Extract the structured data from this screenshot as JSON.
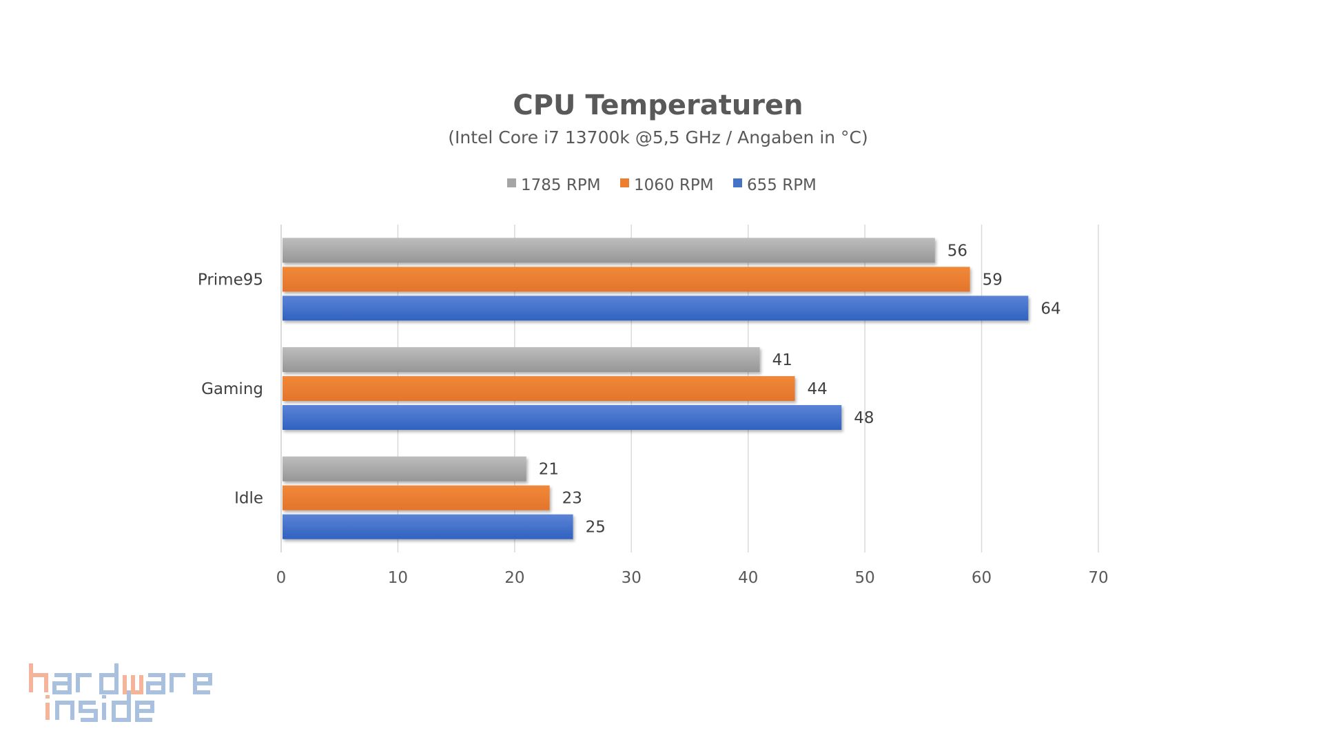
{
  "chart_data": {
    "type": "bar",
    "orientation": "horizontal",
    "title": "CPU Temperaturen",
    "subtitle": "(Intel Core i7 13700k @5,5 GHz / Angaben in °C)",
    "categories": [
      "Prime95",
      "Gaming",
      "Idle"
    ],
    "series": [
      {
        "name": "1785 RPM",
        "color": "#a5a5a5",
        "values": [
          56,
          41,
          21
        ]
      },
      {
        "name": "1060 RPM",
        "color": "#ed7d31",
        "values": [
          59,
          44,
          23
        ]
      },
      {
        "name": "655 RPM",
        "color": "#4472c4",
        "values": [
          64,
          48,
          25
        ]
      }
    ],
    "xlim": [
      0,
      70
    ],
    "xticks": [
      0,
      10,
      20,
      30,
      40,
      50,
      60,
      70
    ],
    "grid": true,
    "legend": "top-center",
    "xlabel": "",
    "ylabel": ""
  },
  "logo": {
    "line1": "hardware",
    "line2": "inside"
  }
}
